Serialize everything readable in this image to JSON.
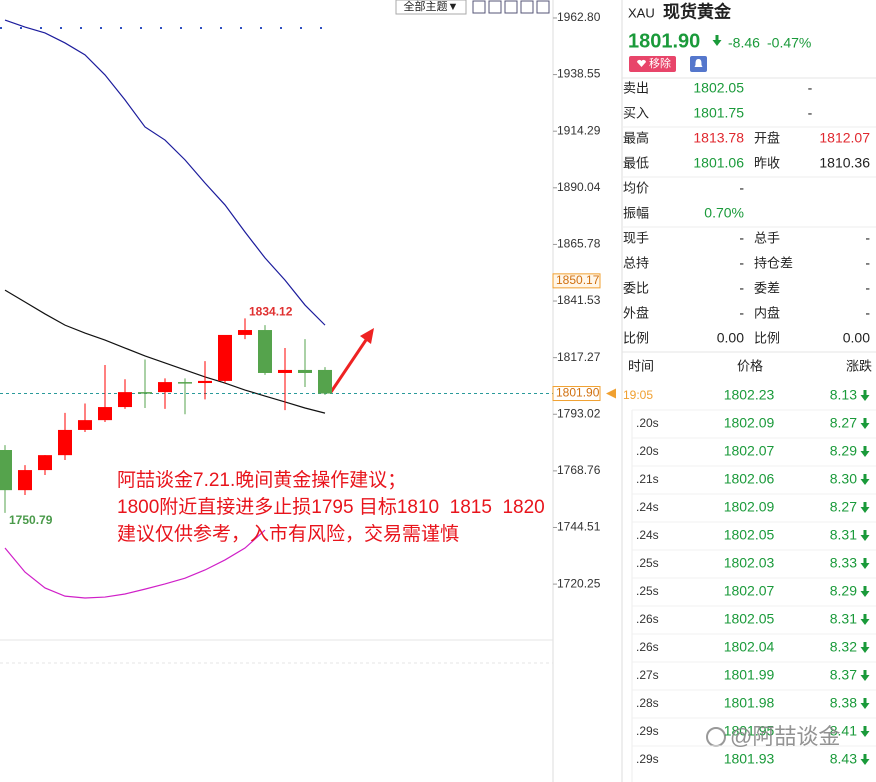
{
  "toolbar": {
    "theme_button": "全部主题▼"
  },
  "chart_data": {
    "type": "candlestick",
    "ylim": [
      1696.3,
      1970.5
    ],
    "yticks": [
      {
        "value": 1962.8,
        "label": "1962.80"
      },
      1938.55,
      1914.29,
      1890.04,
      1865.78,
      1841.53,
      1817.27,
      1793.02,
      1768.76,
      1744.51,
      1720.25
    ],
    "open": [
      1777.7,
      1760.5,
      1769.1,
      1775.5,
      1786.3,
      1790.5,
      1796.1,
      1802.5,
      1802.5,
      1806.8,
      1806.4,
      1807.3,
      1827.0,
      1829.1,
      1810.7,
      1812.0,
      1812.0
    ],
    "high": [
      1779.8,
      1771.2,
      1775.5,
      1793.6,
      1797.6,
      1814.1,
      1808.0,
      1816.5,
      1808.4,
      1808.4,
      1815.8,
      1827.0,
      1834.12,
      1831.2,
      1821.4,
      1825.2,
      1813.2
    ],
    "low": [
      1750.79,
      1758.4,
      1767.0,
      1773.4,
      1785.4,
      1789.7,
      1795.3,
      1795.7,
      1795.3,
      1793.0,
      1799.4,
      1806.4,
      1825.2,
      1809.9,
      1794.8,
      1804.7,
      1801.3
    ],
    "close": [
      1760.5,
      1769.1,
      1775.5,
      1786.3,
      1790.5,
      1796.1,
      1802.5,
      1802.0,
      1806.8,
      1806.4,
      1807.3,
      1827.0,
      1829.1,
      1810.7,
      1812.0,
      1810.7,
      1801.9
    ],
    "up_color": "#ff0000",
    "down_color": "#55a34c",
    "lines": [
      {
        "color": "#1c1c9c",
        "values": [
          1961.9,
          1958.9,
          1956.4,
          1952.1,
          1947.0,
          1938.4,
          1927.7,
          1916.1,
          1910.5,
          1902.0,
          1892.1,
          1882.7,
          1871.1,
          1860.0,
          1850.5,
          1839.8,
          1831.2
        ]
      },
      {
        "color": "#111111",
        "values": [
          1846.2,
          1841.1,
          1836.0,
          1831.2,
          1827.8,
          1824.8,
          1821.4,
          1818.0,
          1815.0,
          1812.0,
          1809.0,
          1806.4,
          1803.4,
          1800.8,
          1798.3,
          1795.7,
          1793.5
        ]
      },
      {
        "color": "#d020c8",
        "values": [
          1735.7,
          1725.4,
          1718.6,
          1715.1,
          1714.3,
          1714.7,
          1716.0,
          1718.1,
          1720.3,
          1722.8,
          1726.3,
          1730.6,
          1735.7,
          1743.4,
          null,
          null,
          null
        ]
      }
    ],
    "price_tags": [
      1850.17,
      {
        "value": 1801.9,
        "label": "1801.90"
      }
    ],
    "annotation": [
      "阿喆谈金7.21.晚间黄金操作建议；",
      "1800附近直接进多止损1795 目标1810  1815  1820",
      "建议仅供参考，入市有风险，交易需谨慎"
    ]
  },
  "quote": {
    "symbol": "XAU",
    "name": "现货黄金",
    "last": "1801.90",
    "change": "-8.46",
    "change_pct": "-0.47%",
    "remove_button": "移除",
    "rows": [
      [
        "卖出",
        "1802.05",
        "-"
      ],
      [
        "买入",
        "1801.75",
        "-"
      ],
      [
        "最高",
        "1813.78",
        "开盘",
        "1812.07"
      ],
      [
        "最低",
        "1801.06",
        "昨收",
        "1810.36"
      ],
      [
        "均价",
        "-"
      ],
      [
        "振幅",
        "0.70%"
      ],
      [
        "现手",
        "-",
        "总手",
        "-"
      ],
      [
        "总持",
        "-",
        "持仓差",
        "-"
      ],
      [
        "委比",
        "-",
        "委差",
        "-"
      ],
      [
        "外盘",
        "-",
        "内盘",
        "-"
      ],
      [
        "比例",
        "0.00",
        "比例",
        "0.00"
      ]
    ]
  },
  "ticks": {
    "header": [
      "时间",
      "价格",
      "涨跌"
    ],
    "rows": [
      [
        "19:05",
        "1802.23",
        "8.13"
      ],
      [
        ".20s",
        "1802.09",
        "8.27"
      ],
      [
        ".20s",
        "1802.07",
        "8.29"
      ],
      [
        ".21s",
        "1802.06",
        "8.30"
      ],
      [
        ".24s",
        "1802.09",
        "8.27"
      ],
      [
        ".24s",
        "1802.05",
        "8.31"
      ],
      [
        ".25s",
        "1802.03",
        "8.33"
      ],
      [
        ".25s",
        "1802.07",
        "8.29"
      ],
      [
        ".26s",
        "1802.05",
        "8.31"
      ],
      [
        ".26s",
        "1802.04",
        "8.32"
      ],
      [
        ".27s",
        "1801.99",
        "8.37"
      ],
      [
        ".28s",
        "1801.98",
        "8.38"
      ],
      [
        ".29s",
        "1801.95",
        "8.41"
      ],
      [
        ".29s",
        "1801.93",
        "8.43"
      ]
    ]
  },
  "watermark": "@阿喆谈金"
}
